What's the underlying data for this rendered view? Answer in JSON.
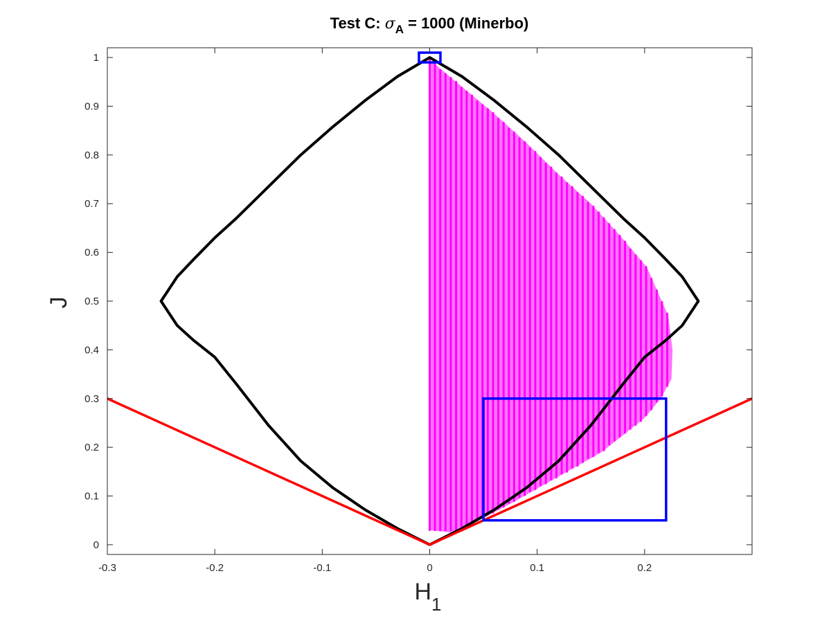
{
  "chart_data": {
    "type": "scatter",
    "title": {
      "prefix": "Test C: ",
      "symbol": "σ",
      "subscript": "A",
      "suffix": " = 1000 (Minerbo)"
    },
    "xlabel": {
      "main": "H",
      "subscript": "1"
    },
    "ylabel": "J",
    "xlim": [
      -0.3,
      0.3
    ],
    "ylim": [
      -0.02,
      1.02
    ],
    "x_ticks": [
      -0.3,
      -0.2,
      -0.1,
      0,
      0.1,
      0.2
    ],
    "x_tick_labels": [
      "-0.3",
      "-0.2",
      "-0.1",
      "0",
      "0.1",
      "0.2"
    ],
    "y_ticks": [
      0,
      0.1,
      0.2,
      0.3,
      0.4,
      0.5,
      0.6,
      0.7,
      0.8,
      0.9,
      1
    ],
    "y_tick_labels": [
      "0",
      "0.1",
      "0.2",
      "0.3",
      "0.4",
      "0.5",
      "0.6",
      "0.7",
      "0.8",
      "0.9",
      "1"
    ],
    "grid": false,
    "box": true,
    "series": [
      {
        "kind": "curve",
        "color": "#000000",
        "points": [
          [
            0,
            0
          ],
          [
            0.03,
            0.0333
          ],
          [
            0.06,
            0.0716
          ],
          [
            0.09,
            0.1167
          ],
          [
            0.12,
            0.172
          ],
          [
            0.15,
            0.245
          ],
          [
            0.18,
            0.33
          ],
          [
            0.2,
            0.385
          ],
          [
            0.22,
            0.42
          ],
          [
            0.235,
            0.45
          ],
          [
            0.25,
            0.5
          ],
          [
            0.235,
            0.55
          ],
          [
            0.22,
            0.585
          ],
          [
            0.2,
            0.63
          ],
          [
            0.18,
            0.67
          ],
          [
            0.15,
            0.735
          ],
          [
            0.12,
            0.8
          ],
          [
            0.09,
            0.858
          ],
          [
            0.06,
            0.912
          ],
          [
            0.03,
            0.961
          ],
          [
            0,
            1
          ],
          [
            -0.03,
            0.961
          ],
          [
            -0.06,
            0.912
          ],
          [
            -0.09,
            0.858
          ],
          [
            -0.12,
            0.8
          ],
          [
            -0.15,
            0.735
          ],
          [
            -0.18,
            0.67
          ],
          [
            -0.2,
            0.63
          ],
          [
            -0.22,
            0.585
          ],
          [
            -0.235,
            0.55
          ],
          [
            -0.25,
            0.5
          ],
          [
            -0.235,
            0.45
          ],
          [
            -0.22,
            0.42
          ],
          [
            -0.2,
            0.385
          ],
          [
            -0.18,
            0.33
          ],
          [
            -0.15,
            0.245
          ],
          [
            -0.12,
            0.172
          ],
          [
            -0.09,
            0.1167
          ],
          [
            -0.06,
            0.0716
          ],
          [
            -0.03,
            0.0333
          ],
          [
            0,
            0
          ]
        ]
      },
      {
        "kind": "line",
        "color": "#ff0000",
        "points": [
          [
            -0.3,
            0.3
          ],
          [
            0,
            0
          ],
          [
            0.3,
            0.3
          ]
        ]
      },
      {
        "kind": "scatter",
        "color": "#ff00ff",
        "cloud": {
          "left_x": 0,
          "right_edge": [
            [
              0.003,
              0.99
            ],
            [
              0.03,
              0.94
            ],
            [
              0.06,
              0.885
            ],
            [
              0.09,
              0.825
            ],
            [
              0.12,
              0.76
            ],
            [
              0.15,
              0.7
            ],
            [
              0.175,
              0.64
            ],
            [
              0.202,
              0.57
            ],
            [
              0.222,
              0.47
            ],
            [
              0.226,
              0.4
            ],
            [
              0.225,
              0.34
            ],
            [
              0.215,
              0.3
            ],
            [
              0.2,
              0.26
            ],
            [
              0.16,
              0.19
            ],
            [
              0.12,
              0.14
            ],
            [
              0.08,
              0.09
            ],
            [
              0.05,
              0.055
            ],
            [
              0.035,
              0.04
            ],
            [
              0.02,
              0.025
            ]
          ],
          "bottom_y": 0.03
        }
      },
      {
        "kind": "rectangle",
        "color": "#0000ff",
        "x": [
          0.05,
          0.22
        ],
        "y": [
          0.05,
          0.3
        ]
      },
      {
        "kind": "rectangle",
        "color": "#0000ff",
        "x": [
          -0.01,
          0.01
        ],
        "y": [
          0.99,
          1.01
        ]
      }
    ]
  }
}
